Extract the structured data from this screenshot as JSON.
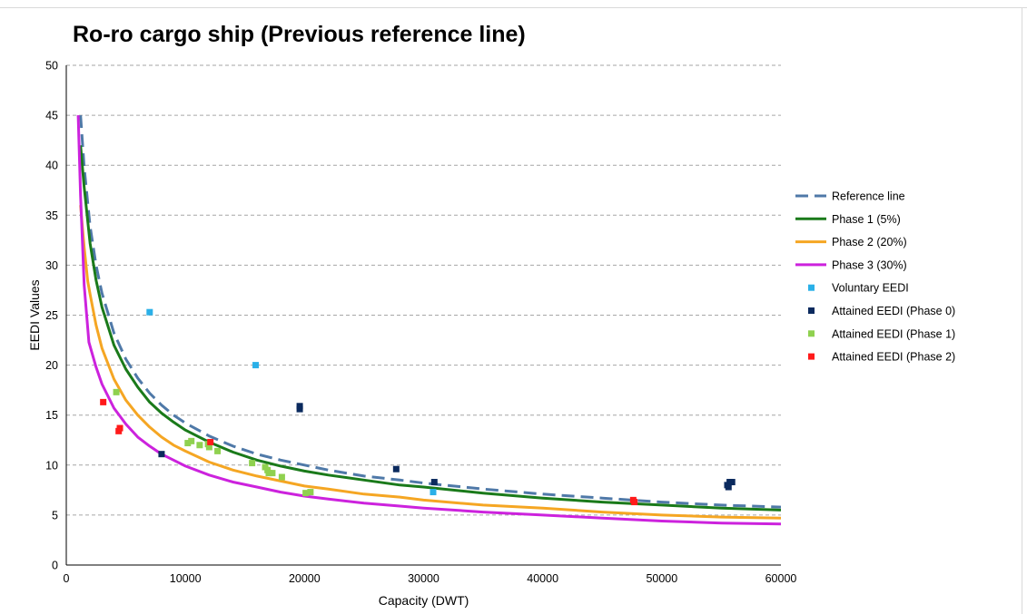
{
  "chart_data": {
    "type": "line",
    "title": "Ro-ro cargo ship (Previous reference line)",
    "xlabel": "Capacity (DWT)",
    "ylabel": "EEDI Values",
    "xlim": [
      0,
      60000
    ],
    "ylim": [
      0,
      50
    ],
    "xticks": [
      "0",
      "10000",
      "20000",
      "30000",
      "40000",
      "50000",
      "60000"
    ],
    "yticks": [
      "0",
      "5",
      "10",
      "15",
      "20",
      "25",
      "30",
      "35",
      "40",
      "45",
      "50"
    ],
    "grid": "horizontal-dashed",
    "legend_position": "right",
    "series": [
      {
        "name": "Reference line",
        "kind": "line",
        "style": "dashed",
        "color": "#4f79a8",
        "points": [
          [
            1200,
            45
          ],
          [
            1500,
            39.8
          ],
          [
            2000,
            33.9
          ],
          [
            2500,
            30.0
          ],
          [
            3000,
            27.2
          ],
          [
            4000,
            23.2
          ],
          [
            5000,
            20.6
          ],
          [
            6000,
            18.7
          ],
          [
            7000,
            17.2
          ],
          [
            8000,
            16.0
          ],
          [
            9000,
            15.0
          ],
          [
            10000,
            14.2
          ],
          [
            12000,
            12.9
          ],
          [
            14000,
            11.9
          ],
          [
            16000,
            11.1
          ],
          [
            18000,
            10.5
          ],
          [
            20000,
            10.0
          ],
          [
            22000,
            9.5
          ],
          [
            25000,
            8.9
          ],
          [
            28000,
            8.5
          ],
          [
            30000,
            8.2
          ],
          [
            35000,
            7.6
          ],
          [
            40000,
            7.1
          ],
          [
            45000,
            6.7
          ],
          [
            50000,
            6.3
          ],
          [
            55000,
            6.0
          ],
          [
            60000,
            5.8
          ]
        ]
      },
      {
        "name": "Phase 1 (5%)",
        "kind": "line",
        "style": "solid",
        "color": "#1a7a1a",
        "points": [
          [
            1200,
            42.0
          ],
          [
            1500,
            37.8
          ],
          [
            2000,
            32.2
          ],
          [
            2500,
            28.5
          ],
          [
            3000,
            25.8
          ],
          [
            4000,
            22.0
          ],
          [
            5000,
            19.6
          ],
          [
            6000,
            17.8
          ],
          [
            7000,
            16.3
          ],
          [
            8000,
            15.2
          ],
          [
            9000,
            14.3
          ],
          [
            10000,
            13.5
          ],
          [
            12000,
            12.3
          ],
          [
            14000,
            11.3
          ],
          [
            16000,
            10.5
          ],
          [
            18000,
            9.9
          ],
          [
            20000,
            9.4
          ],
          [
            22000,
            9.0
          ],
          [
            25000,
            8.5
          ],
          [
            28000,
            8.0
          ],
          [
            30000,
            7.8
          ],
          [
            35000,
            7.2
          ],
          [
            40000,
            6.7
          ],
          [
            45000,
            6.3
          ],
          [
            50000,
            6.0
          ],
          [
            55000,
            5.7
          ],
          [
            60000,
            5.5
          ]
        ]
      },
      {
        "name": "Phase 2 (20%)",
        "kind": "line",
        "style": "solid",
        "color": "#f5a623",
        "points": [
          [
            1200,
            36.0
          ],
          [
            1500,
            31.8
          ],
          [
            1800,
            28.4
          ],
          [
            2000,
            27.1
          ],
          [
            2500,
            24.0
          ],
          [
            3000,
            21.7
          ],
          [
            4000,
            18.6
          ],
          [
            5000,
            16.5
          ],
          [
            6000,
            15.0
          ],
          [
            7000,
            13.8
          ],
          [
            8000,
            12.8
          ],
          [
            9000,
            12.0
          ],
          [
            10000,
            11.4
          ],
          [
            12000,
            10.3
          ],
          [
            14000,
            9.5
          ],
          [
            16000,
            8.9
          ],
          [
            18000,
            8.4
          ],
          [
            20000,
            7.9
          ],
          [
            22000,
            7.6
          ],
          [
            25000,
            7.1
          ],
          [
            28000,
            6.8
          ],
          [
            30000,
            6.5
          ],
          [
            35000,
            6.0
          ],
          [
            40000,
            5.7
          ],
          [
            45000,
            5.3
          ],
          [
            50000,
            5.0
          ],
          [
            55000,
            4.8
          ],
          [
            60000,
            4.7
          ]
        ]
      },
      {
        "name": "Phase 3 (30%)",
        "kind": "line",
        "style": "solid",
        "color": "#cc22dd",
        "points": [
          [
            1000,
            45.0
          ],
          [
            1200,
            37.0
          ],
          [
            1500,
            28.0
          ],
          [
            1900,
            22.3
          ],
          [
            2500,
            19.8
          ],
          [
            3000,
            18.1
          ],
          [
            4000,
            15.7
          ],
          [
            5000,
            14.1
          ],
          [
            6000,
            12.8
          ],
          [
            7000,
            11.9
          ],
          [
            8000,
            11.1
          ],
          [
            9000,
            10.5
          ],
          [
            10000,
            9.9
          ],
          [
            12000,
            9.0
          ],
          [
            14000,
            8.3
          ],
          [
            16000,
            7.8
          ],
          [
            18000,
            7.3
          ],
          [
            20000,
            6.9
          ],
          [
            22000,
            6.6
          ],
          [
            25000,
            6.2
          ],
          [
            28000,
            5.9
          ],
          [
            30000,
            5.7
          ],
          [
            35000,
            5.3
          ],
          [
            40000,
            5.0
          ],
          [
            45000,
            4.7
          ],
          [
            50000,
            4.4
          ],
          [
            55000,
            4.2
          ],
          [
            60000,
            4.1
          ]
        ]
      },
      {
        "name": "Voluntary EEDI",
        "kind": "scatter",
        "color": "#2ab0e8",
        "points": [
          [
            7000,
            25.3
          ],
          [
            15900,
            20.0
          ],
          [
            30800,
            7.3
          ]
        ]
      },
      {
        "name": "Attained EEDI (Phase 0)",
        "kind": "scatter",
        "color": "#0b2a5e",
        "points": [
          [
            8000,
            11.1
          ],
          [
            19600,
            15.9
          ],
          [
            19600,
            15.6
          ],
          [
            27700,
            9.6
          ],
          [
            30900,
            8.3
          ],
          [
            55500,
            8.0
          ],
          [
            55700,
            8.3
          ],
          [
            55900,
            8.3
          ],
          [
            55600,
            7.8
          ]
        ]
      },
      {
        "name": "Attained EEDI (Phase 1)",
        "kind": "scatter",
        "color": "#8fd14f",
        "points": [
          [
            4200,
            17.3
          ],
          [
            10200,
            12.2
          ],
          [
            10500,
            12.4
          ],
          [
            11200,
            12.0
          ],
          [
            11900,
            12.1
          ],
          [
            12000,
            11.8
          ],
          [
            12700,
            11.4
          ],
          [
            15600,
            10.2
          ],
          [
            16700,
            9.8
          ],
          [
            16900,
            9.5
          ],
          [
            17000,
            9.2
          ],
          [
            17300,
            9.2
          ],
          [
            18100,
            8.8
          ],
          [
            20100,
            7.2
          ],
          [
            20500,
            7.3
          ]
        ]
      },
      {
        "name": "Attained EEDI (Phase 2)",
        "kind": "scatter",
        "color": "#ff1a1a",
        "points": [
          [
            3100,
            16.3
          ],
          [
            4400,
            13.4
          ],
          [
            4500,
            13.7
          ],
          [
            12100,
            12.3
          ],
          [
            47600,
            6.5
          ],
          [
            47700,
            6.3
          ]
        ]
      }
    ]
  }
}
